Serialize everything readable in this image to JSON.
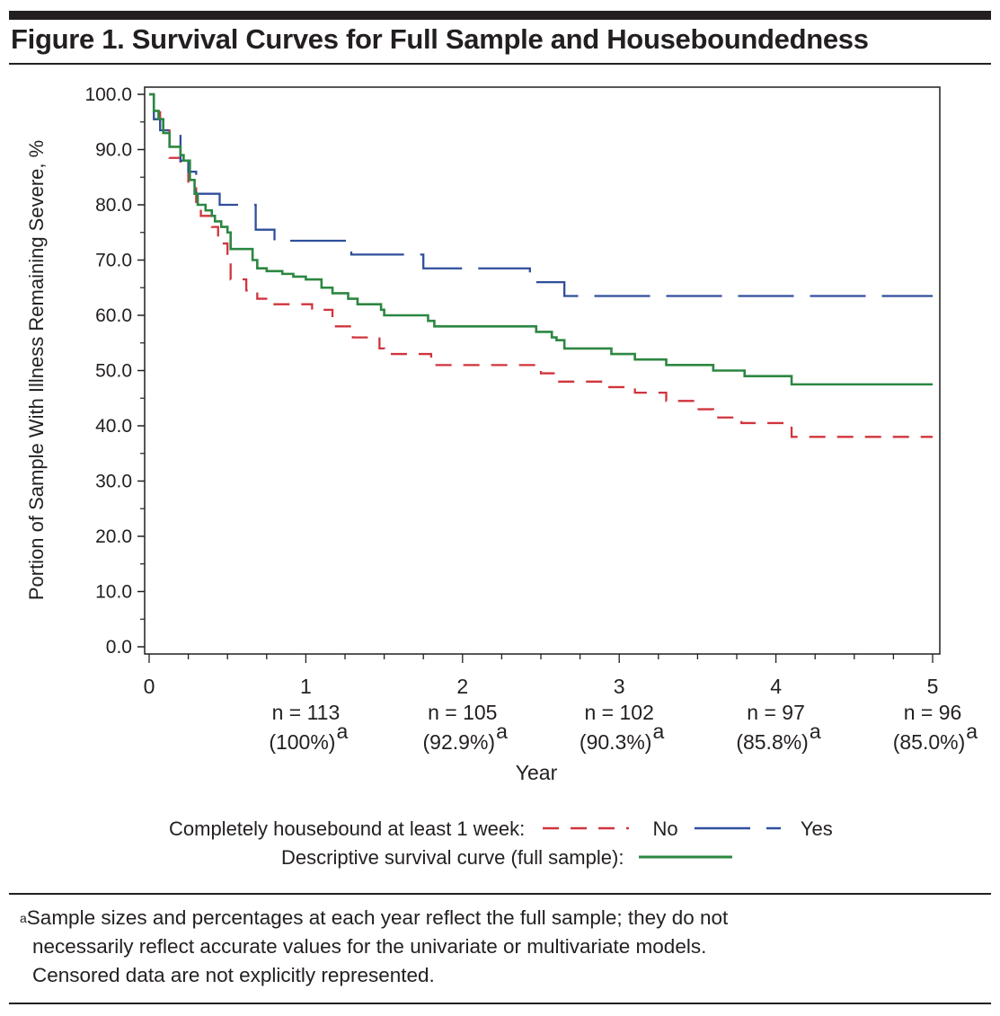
{
  "figure": {
    "title": "Figure 1. Survival Curves for Full Sample and Houseboundedness",
    "legend": {
      "row1_label": "Completely housebound at least 1 week:",
      "no_label": "No",
      "yes_label": "Yes",
      "row2_label": "Descriptive survival curve (full sample):"
    },
    "footnote": {
      "marker": "a",
      "line1": "Sample sizes and percentages at each year reflect the full sample; they do not",
      "line2": "necessarily reflect accurate values for the univariate or multivariate models.",
      "line3": "Censored data are not explicitly represented."
    }
  },
  "chart_data": {
    "type": "line",
    "subtype": "step (Kaplan-Meier survival)",
    "title": "Figure 1. Survival Curves for Full Sample and Houseboundedness",
    "xlabel": "Year",
    "ylabel": "Portion of Sample With Illness Remaining Severe, %",
    "xlim": [
      0,
      5
    ],
    "ylim": [
      0,
      100
    ],
    "x_ticks": [
      "0",
      "1",
      "2",
      "3",
      "4",
      "5"
    ],
    "x_minor_step": 0.25,
    "y_ticks": [
      "0.0",
      "10.0",
      "20.0",
      "30.0",
      "40.0",
      "50.0",
      "60.0",
      "70.0",
      "80.0",
      "90.0",
      "100.0"
    ],
    "y_minor_step": 5,
    "grid": false,
    "legend_position": "bottom",
    "at_risk": [
      {
        "year": 1,
        "n": "n = 113",
        "pct": "(100%)"
      },
      {
        "year": 2,
        "n": "n = 105",
        "pct": "(92.9%)"
      },
      {
        "year": 3,
        "n": "n = 102",
        "pct": "(90.3%)"
      },
      {
        "year": 4,
        "n": "n = 97",
        "pct": "(85.8%)"
      },
      {
        "year": 5,
        "n": "n = 96",
        "pct": "(85.0%)"
      }
    ],
    "at_risk_superscript": "a",
    "series": [
      {
        "name": "No (housebound)",
        "color": "#d0343c",
        "dash": "dashed",
        "steps": [
          [
            0,
            100
          ],
          [
            0.03,
            97
          ],
          [
            0.07,
            93.5
          ],
          [
            0.13,
            88.5
          ],
          [
            0.2,
            87
          ],
          [
            0.25,
            83
          ],
          [
            0.3,
            80.5
          ],
          [
            0.33,
            78
          ],
          [
            0.4,
            76
          ],
          [
            0.44,
            73
          ],
          [
            0.5,
            70
          ],
          [
            0.52,
            66.5
          ],
          [
            0.62,
            64.5
          ],
          [
            0.69,
            63
          ],
          [
            0.8,
            62
          ],
          [
            1.04,
            61
          ],
          [
            1.17,
            58
          ],
          [
            1.3,
            56
          ],
          [
            1.47,
            54
          ],
          [
            1.5,
            53
          ],
          [
            1.8,
            51
          ],
          [
            2.05,
            51
          ],
          [
            2.22,
            51
          ],
          [
            2.5,
            49.5
          ],
          [
            2.6,
            48
          ],
          [
            2.9,
            47
          ],
          [
            3.1,
            46
          ],
          [
            3.3,
            44.5
          ],
          [
            3.5,
            43
          ],
          [
            3.6,
            41.5
          ],
          [
            3.78,
            40.5
          ],
          [
            4.1,
            38
          ],
          [
            5,
            38
          ]
        ]
      },
      {
        "name": "Yes (housebound)",
        "color": "#2f4f9b",
        "dash": "long-dash",
        "steps": [
          [
            0,
            100
          ],
          [
            0.03,
            95.5
          ],
          [
            0.07,
            93.5
          ],
          [
            0.2,
            88
          ],
          [
            0.25,
            86
          ],
          [
            0.3,
            82
          ],
          [
            0.45,
            80
          ],
          [
            0.68,
            75.5
          ],
          [
            0.8,
            73.5
          ],
          [
            1.29,
            71
          ],
          [
            1.75,
            68.5
          ],
          [
            2.43,
            66
          ],
          [
            2.65,
            63.5
          ],
          [
            5,
            63.5
          ]
        ]
      },
      {
        "name": "Full sample",
        "color": "#2c8742",
        "dash": "solid",
        "steps": [
          [
            0,
            100
          ],
          [
            0.03,
            97
          ],
          [
            0.06,
            95.5
          ],
          [
            0.09,
            93
          ],
          [
            0.13,
            90.5
          ],
          [
            0.2,
            89
          ],
          [
            0.22,
            88
          ],
          [
            0.26,
            84.5
          ],
          [
            0.29,
            82
          ],
          [
            0.31,
            80
          ],
          [
            0.36,
            79
          ],
          [
            0.4,
            78
          ],
          [
            0.42,
            77
          ],
          [
            0.46,
            76
          ],
          [
            0.5,
            75
          ],
          [
            0.52,
            72
          ],
          [
            0.66,
            70
          ],
          [
            0.69,
            68.5
          ],
          [
            0.75,
            68
          ],
          [
            0.85,
            67.5
          ],
          [
            0.92,
            67
          ],
          [
            1.0,
            66.5
          ],
          [
            1.1,
            65
          ],
          [
            1.17,
            64
          ],
          [
            1.27,
            63
          ],
          [
            1.33,
            62
          ],
          [
            1.48,
            61
          ],
          [
            1.5,
            60
          ],
          [
            1.78,
            59
          ],
          [
            1.82,
            58
          ],
          [
            2.47,
            57
          ],
          [
            2.57,
            56
          ],
          [
            2.6,
            55.5
          ],
          [
            2.65,
            54
          ],
          [
            2.95,
            53
          ],
          [
            3.1,
            52
          ],
          [
            3.3,
            51
          ],
          [
            3.6,
            50
          ],
          [
            3.8,
            49
          ],
          [
            4.1,
            47.5
          ],
          [
            5,
            47.5
          ]
        ]
      }
    ]
  }
}
